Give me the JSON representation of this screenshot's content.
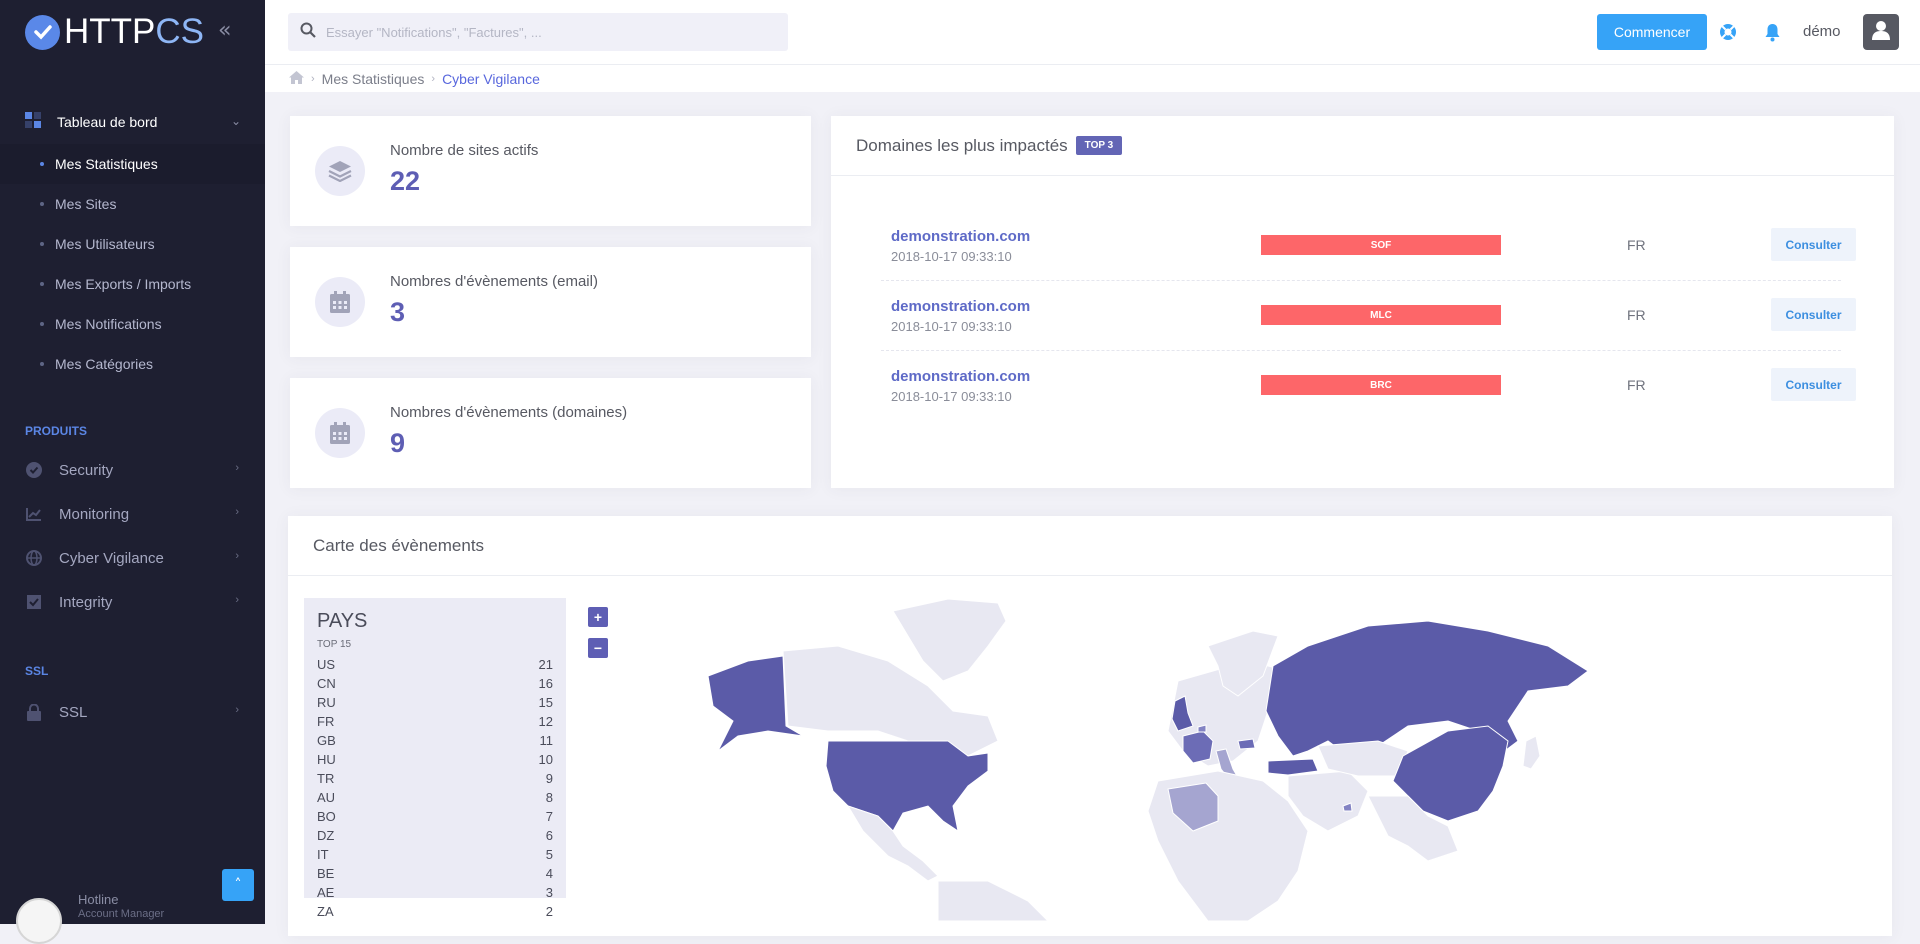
{
  "brand": {
    "name_main": "HTTP",
    "name_accent": "CS"
  },
  "sidebar": {
    "dashboard_label": "Tableau de bord",
    "sub_items": [
      {
        "label": "Mes Statistiques",
        "active": true
      },
      {
        "label": "Mes Sites"
      },
      {
        "label": "Mes Utilisateurs"
      },
      {
        "label": "Mes Exports / Imports"
      },
      {
        "label": "Mes Notifications"
      },
      {
        "label": "Mes Catégories"
      }
    ],
    "section_products": "PRODUITS",
    "products": [
      {
        "label": "Security",
        "icon": "check-circle-icon"
      },
      {
        "label": "Monitoring",
        "icon": "chart-line-icon"
      },
      {
        "label": "Cyber Vigilance",
        "icon": "globe-icon"
      },
      {
        "label": "Integrity",
        "icon": "checkbox-icon"
      }
    ],
    "section_ssl": "SSL",
    "ssl_item": {
      "label": "SSL",
      "icon": "lock-icon"
    },
    "hotline": {
      "name": "Hotline",
      "role": "Account Manager"
    }
  },
  "header": {
    "search_placeholder": "Essayer \"Notifications\", \"Factures\", ...",
    "start_button": "Commencer",
    "user_name": "démo"
  },
  "breadcrumb": {
    "items": [
      "Mes Statistiques",
      "Cyber Vigilance"
    ]
  },
  "stats": [
    {
      "label": "Nombre de sites actifs",
      "value": "22",
      "icon": "layers-icon"
    },
    {
      "label": "Nombres d'évènements (email)",
      "value": "3",
      "icon": "calendar-icon"
    },
    {
      "label": "Nombres d'évènements (domaines)",
      "value": "9",
      "icon": "calendar-icon"
    }
  ],
  "domains": {
    "title": "Domaines les plus impactés",
    "badge": "TOP 3",
    "rows": [
      {
        "name": "demonstration.com",
        "date": "2018-10-17 09:33:10",
        "tag": "SOF",
        "country": "FR",
        "action": "Consulter"
      },
      {
        "name": "demonstration.com",
        "date": "2018-10-17 09:33:10",
        "tag": "MLC",
        "country": "FR",
        "action": "Consulter"
      },
      {
        "name": "demonstration.com",
        "date": "2018-10-17 09:33:10",
        "tag": "BRC",
        "country": "FR",
        "action": "Consulter"
      }
    ]
  },
  "map": {
    "title": "Carte des évènements",
    "panel_title": "PAYS",
    "panel_subtitle": "TOP 15",
    "countries": [
      {
        "code": "US",
        "count": "21"
      },
      {
        "code": "CN",
        "count": "16"
      },
      {
        "code": "RU",
        "count": "15"
      },
      {
        "code": "FR",
        "count": "12"
      },
      {
        "code": "GB",
        "count": "11"
      },
      {
        "code": "HU",
        "count": "10"
      },
      {
        "code": "TR",
        "count": "9"
      },
      {
        "code": "AU",
        "count": "8"
      },
      {
        "code": "BO",
        "count": "7"
      },
      {
        "code": "DZ",
        "count": "6"
      },
      {
        "code": "IT",
        "count": "5"
      },
      {
        "code": "BE",
        "count": "4"
      },
      {
        "code": "AE",
        "count": "3"
      },
      {
        "code": "ZA",
        "count": "2"
      }
    ],
    "zoom_in": "+",
    "zoom_out": "−",
    "colors": {
      "high": "#5b5ba8",
      "mid": "#6c6cb6",
      "low": "#a5a5d0",
      "none": "#e8e8f2"
    }
  },
  "colors": {
    "accent": "#5e5eb4",
    "primary": "#36a3f7",
    "danger": "#fd6669",
    "sidebar": "#1e1f31"
  }
}
